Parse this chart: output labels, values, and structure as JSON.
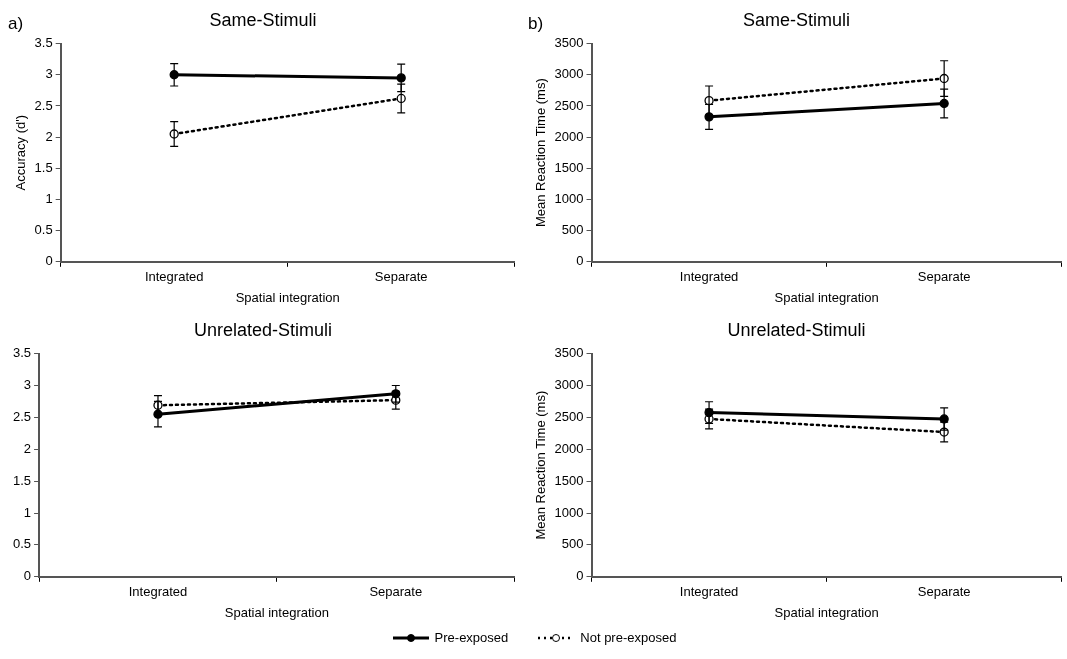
{
  "chart_data": [
    {
      "type": "line",
      "title": "Same-Stimuli",
      "xlabel": "Spatial integration",
      "ylabel": "Accuracy (d')",
      "annotations": [
        "a)"
      ],
      "categories": [
        "Integrated",
        "Separate"
      ],
      "ylim": [
        0,
        3.5
      ],
      "yticks": [
        0,
        0.5,
        1,
        1.5,
        2,
        2.5,
        3,
        3.5
      ],
      "grid": false,
      "legend": "bottom",
      "marker": "circle",
      "series": [
        {
          "name": "Pre-exposed",
          "color": "#000000",
          "line_style": "solid",
          "values": [
            3.0,
            2.95
          ],
          "errors": [
            0.18,
            0.22
          ]
        },
        {
          "name": "Not pre-exposed",
          "color": "#000000",
          "line_style": "dotted",
          "values": [
            2.05,
            2.62
          ],
          "errors": [
            0.2,
            0.23
          ]
        }
      ]
    },
    {
      "type": "line",
      "title": "Same-Stimuli",
      "xlabel": "Spatial integration",
      "ylabel": "Mean Reaction Time (ms)",
      "annotations": [
        "b)"
      ],
      "categories": [
        "Integrated",
        "Separate"
      ],
      "ylim": [
        0,
        3500
      ],
      "yticks": [
        0,
        500,
        1000,
        1500,
        2000,
        2500,
        3000,
        3500
      ],
      "grid": false,
      "marker": "circle",
      "series": [
        {
          "color": "#000000",
          "line_style": "solid",
          "values": [
            2325,
            2540
          ],
          "errors": [
            200,
            230
          ]
        },
        {
          "color": "#000000",
          "line_style": "dotted",
          "values": [
            2585,
            2940
          ],
          "errors": [
            235,
            285
          ]
        }
      ]
    },
    {
      "type": "line",
      "title": "Unrelated-Stimuli",
      "xlabel": "Spatial integration",
      "categories": [
        "Integrated",
        "Separate"
      ],
      "ylim": [
        0,
        3.5
      ],
      "yticks": [
        0,
        0.5,
        1,
        1.5,
        2,
        2.5,
        3,
        3.5
      ],
      "grid": false,
      "marker": "circle",
      "series": [
        {
          "color": "#000000",
          "line_style": "solid",
          "values": [
            2.55,
            2.87
          ],
          "errors": [
            0.2,
            0.13
          ]
        },
        {
          "color": "#000000",
          "line_style": "dotted",
          "values": [
            2.69,
            2.77
          ],
          "errors": [
            0.15,
            0.14
          ]
        }
      ]
    },
    {
      "type": "line",
      "title": "Unrelated-Stimuli",
      "xlabel": "Spatial integration",
      "ylabel": "Mean Reaction Time (ms)",
      "categories": [
        "Integrated",
        "Separate"
      ],
      "ylim": [
        0,
        3500
      ],
      "yticks": [
        0,
        500,
        1000,
        1500,
        2000,
        2500,
        3000,
        3500
      ],
      "grid": false,
      "marker": "circle",
      "series": [
        {
          "color": "#000000",
          "line_style": "solid",
          "values": [
            2575,
            2475
          ],
          "errors": [
            170,
            175
          ]
        },
        {
          "color": "#000000",
          "line_style": "dotted",
          "values": [
            2475,
            2270
          ],
          "errors": [
            155,
            155
          ]
        }
      ]
    }
  ]
}
